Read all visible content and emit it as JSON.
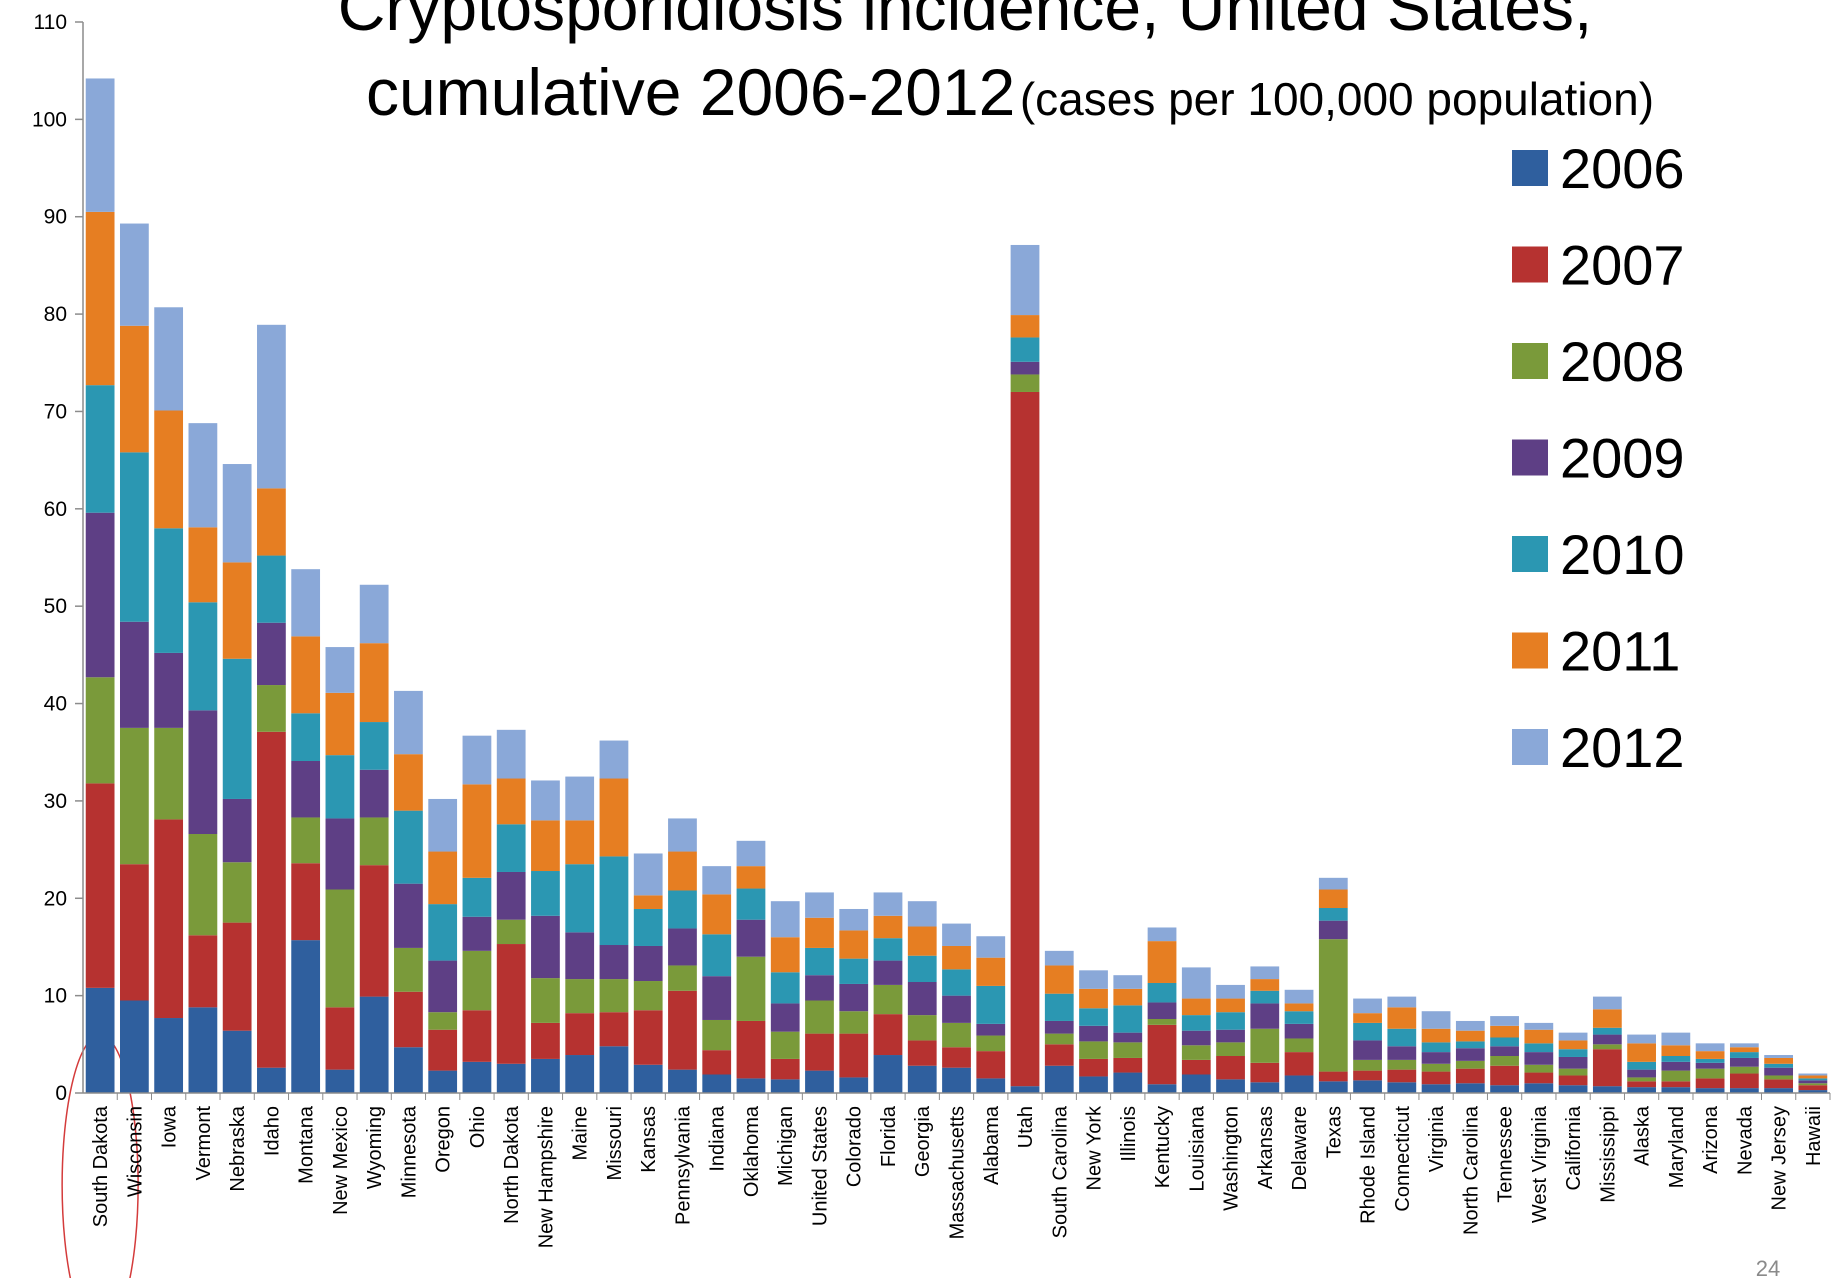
{
  "chart_data": {
    "type": "bar",
    "stacked": true,
    "title_main": "Cryptosporidiosis incidence, United States,",
    "title_line2": "cumulative 2006-2012",
    "title_units": "(cases per 100,000 population)",
    "ylim": [
      0,
      110
    ],
    "yticks": [
      0,
      10,
      20,
      30,
      40,
      50,
      60,
      70,
      80,
      90,
      100,
      110
    ],
    "legend_position": "right",
    "categories": [
      "South Dakota",
      "Wisconsin",
      "Iowa",
      "Vermont",
      "Nebraska",
      "Idaho",
      "Montana",
      "New Mexico",
      "Wyoming",
      "Minnesota",
      "Oregon",
      "Ohio",
      "North Dakota",
      "New Hampshire",
      "Maine",
      "Missouri",
      "Kansas",
      "Pennsylvania",
      "Indiana",
      "Oklahoma",
      "Michigan",
      "United States",
      "Colorado",
      "Florida",
      "Georgia",
      "Massachusetts",
      "Alabama",
      "Utah",
      "South Carolina",
      "New York",
      "Illinois",
      "Kentucky",
      "Louisiana",
      "Washington",
      "Arkansas",
      "Delaware",
      "Texas",
      "Rhode Island",
      "Connecticut",
      "Virginia",
      "North Carolina",
      "Tennessee",
      "West Virginia",
      "California",
      "Mississippi",
      "Alaska",
      "Maryland",
      "Arizona",
      "Nevada",
      "New Jersey",
      "Hawaii"
    ],
    "series": [
      {
        "name": "2006",
        "color": "#2f5f9e",
        "values": [
          10.8,
          9.5,
          7.7,
          8.8,
          6.4,
          2.6,
          15.7,
          2.4,
          9.9,
          4.7,
          2.3,
          3.2,
          3.0,
          3.5,
          3.9,
          4.8,
          2.9,
          2.4,
          1.9,
          1.5,
          1.4,
          2.3,
          1.6,
          3.9,
          2.8,
          2.6,
          1.5,
          0.7,
          2.8,
          1.7,
          2.1,
          0.9,
          1.9,
          1.4,
          1.1,
          1.8,
          1.2,
          1.3,
          1.1,
          0.9,
          1.0,
          0.8,
          1.0,
          0.8,
          0.7,
          0.6,
          0.6,
          0.5,
          0.5,
          0.5,
          0.3
        ]
      },
      {
        "name": "2007",
        "color": "#b63230",
        "values": [
          21.0,
          14.0,
          20.4,
          7.4,
          11.1,
          34.5,
          7.9,
          6.4,
          13.5,
          5.7,
          4.2,
          5.3,
          12.3,
          3.7,
          4.3,
          3.5,
          5.6,
          8.1,
          2.5,
          5.9,
          2.1,
          3.8,
          4.5,
          4.2,
          2.6,
          2.1,
          2.8,
          71.3,
          2.2,
          1.8,
          1.5,
          6.1,
          1.5,
          2.4,
          2.0,
          2.4,
          1.0,
          1.0,
          1.3,
          1.3,
          1.5,
          2.0,
          1.1,
          1.0,
          3.8,
          0.6,
          0.6,
          1.0,
          1.5,
          0.9,
          0.5
        ]
      },
      {
        "name": "2008",
        "color": "#7a9a3a",
        "values": [
          10.9,
          14.0,
          9.4,
          10.4,
          6.2,
          4.8,
          4.7,
          12.1,
          4.9,
          4.5,
          1.8,
          6.1,
          2.5,
          4.6,
          3.5,
          3.4,
          3.0,
          2.6,
          3.1,
          6.6,
          2.8,
          3.4,
          2.3,
          3.0,
          2.6,
          2.5,
          1.6,
          1.8,
          1.1,
          1.8,
          1.6,
          0.6,
          1.5,
          1.4,
          3.5,
          1.4,
          13.6,
          1.1,
          1.0,
          0.8,
          0.8,
          1.0,
          0.8,
          0.7,
          0.5,
          0.4,
          1.1,
          1.0,
          0.7,
          0.4,
          0.2
        ]
      },
      {
        "name": "2009",
        "color": "#5e3f85",
        "values": [
          16.9,
          10.9,
          7.7,
          12.7,
          6.5,
          6.4,
          5.8,
          7.3,
          4.9,
          6.6,
          5.3,
          3.5,
          4.9,
          6.4,
          4.8,
          3.5,
          3.6,
          3.8,
          4.5,
          3.8,
          2.9,
          2.6,
          2.8,
          2.5,
          3.4,
          2.8,
          1.2,
          1.3,
          1.3,
          1.6,
          1.0,
          1.7,
          1.5,
          1.3,
          2.6,
          1.5,
          1.9,
          2.0,
          1.4,
          1.2,
          1.3,
          1.0,
          1.3,
          1.2,
          1.0,
          0.8,
          0.9,
          0.6,
          0.9,
          0.8,
          0.3
        ]
      },
      {
        "name": "2010",
        "color": "#2b97b2",
        "values": [
          13.1,
          17.4,
          12.8,
          11.1,
          14.4,
          6.9,
          4.9,
          6.5,
          4.9,
          7.5,
          5.8,
          4.0,
          4.9,
          4.6,
          7.0,
          9.1,
          3.8,
          3.9,
          4.3,
          3.2,
          3.2,
          2.8,
          2.6,
          2.3,
          2.7,
          2.7,
          3.9,
          2.5,
          2.8,
          1.8,
          2.8,
          2.0,
          1.6,
          1.8,
          1.3,
          1.3,
          1.3,
          1.8,
          1.8,
          1.0,
          0.7,
          0.9,
          0.9,
          0.8,
          0.7,
          0.8,
          0.6,
          0.4,
          0.6,
          0.4,
          0.2
        ]
      },
      {
        "name": "2011",
        "color": "#e67e22",
        "values": [
          17.8,
          13.0,
          12.1,
          7.7,
          9.9,
          6.9,
          7.9,
          6.4,
          8.1,
          5.8,
          5.4,
          9.6,
          4.7,
          5.2,
          4.5,
          8.0,
          1.4,
          4.0,
          4.1,
          2.3,
          3.6,
          3.1,
          2.9,
          2.3,
          3.0,
          2.4,
          2.9,
          2.3,
          2.9,
          2.0,
          1.7,
          4.3,
          1.7,
          1.4,
          1.2,
          0.8,
          1.9,
          1.0,
          2.2,
          1.4,
          1.1,
          1.2,
          1.4,
          0.9,
          1.9,
          1.9,
          1.1,
          0.8,
          0.5,
          0.6,
          0.3
        ]
      },
      {
        "name": "2012",
        "color": "#8aa8d8",
        "values": [
          13.7,
          10.5,
          10.6,
          10.7,
          10.1,
          16.8,
          6.9,
          4.7,
          6.0,
          6.5,
          5.4,
          5.0,
          5.0,
          4.1,
          4.5,
          3.9,
          4.3,
          3.4,
          2.9,
          2.6,
          3.7,
          2.6,
          2.2,
          2.4,
          2.6,
          2.3,
          2.2,
          7.2,
          1.5,
          1.9,
          1.4,
          1.4,
          3.2,
          1.4,
          1.3,
          1.4,
          1.2,
          1.5,
          1.1,
          1.8,
          1.0,
          1.0,
          0.7,
          0.8,
          1.3,
          0.9,
          1.3,
          0.8,
          0.4,
          0.3,
          0.2
        ]
      }
    ],
    "slide_number": "24"
  }
}
